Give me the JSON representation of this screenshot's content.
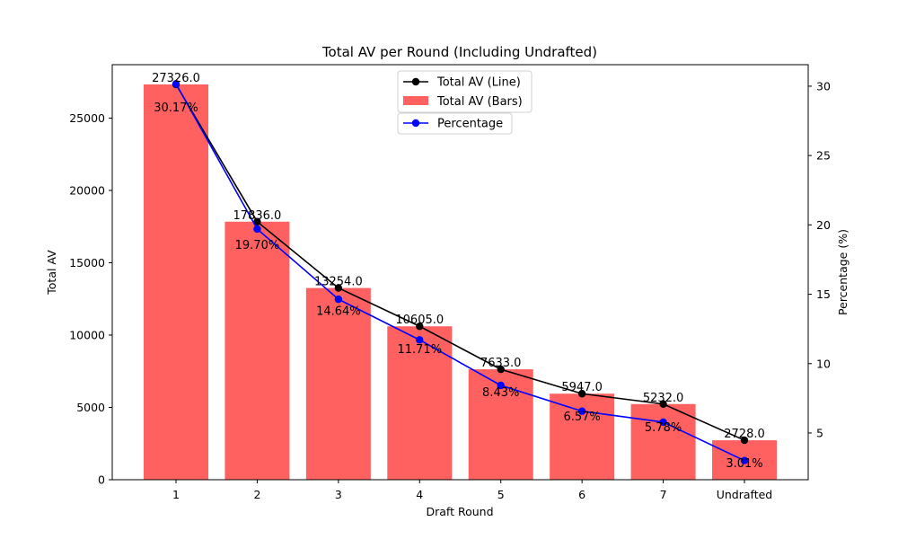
{
  "chart_data": {
    "type": "bar",
    "title": "Total AV per Round (Including Undrafted)",
    "xlabel": "Draft Round",
    "ylabel": "Total AV",
    "y2label": "Percentage (%)",
    "categories": [
      "1",
      "2",
      "3",
      "4",
      "5",
      "6",
      "7",
      "Undrafted"
    ],
    "series": [
      {
        "name": "Total AV (Bars)",
        "type": "bar",
        "axis": "left",
        "color": "#ff6161",
        "values": [
          27326.0,
          17836.0,
          13254.0,
          10605.0,
          7633.0,
          5947.0,
          5232.0,
          2728.0
        ],
        "labels": [
          "27326.0",
          "17836.0",
          "13254.0",
          "10605.0",
          "7633.0",
          "5947.0",
          "5232.0",
          "2728.0"
        ]
      },
      {
        "name": "Total AV (Line)",
        "type": "line",
        "axis": "left",
        "color": "#000000",
        "values": [
          27326.0,
          17836.0,
          13254.0,
          10605.0,
          7633.0,
          5947.0,
          5232.0,
          2728.0
        ]
      },
      {
        "name": "Percentage",
        "type": "line",
        "axis": "right",
        "color": "#0000ff",
        "values": [
          30.17,
          19.7,
          14.64,
          11.71,
          8.43,
          6.57,
          5.78,
          3.01
        ],
        "labels": [
          "30.17%",
          "19.70%",
          "14.64%",
          "11.71%",
          "8.43%",
          "6.57%",
          "5.78%",
          "3.01%"
        ]
      }
    ],
    "ylim": [
      0,
      28692
    ],
    "y2lim": [
      1.63,
      31.55
    ],
    "yticks": [
      0,
      5000,
      10000,
      15000,
      20000,
      25000
    ],
    "y2ticks": [
      5,
      10,
      15,
      20,
      25,
      30
    ],
    "grid": false,
    "legend_position": "top-center"
  }
}
